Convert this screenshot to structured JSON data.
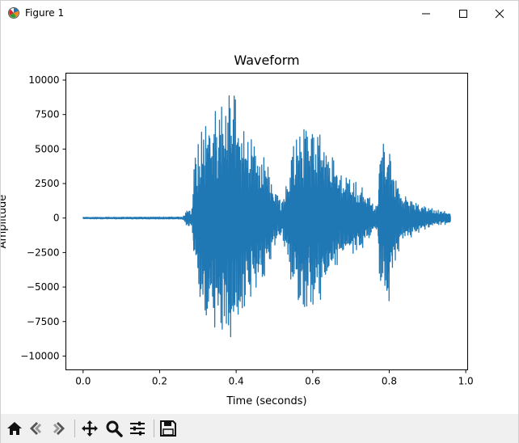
{
  "window": {
    "title": "Figure 1",
    "icons": {
      "app": "matplotlib-figure-icon",
      "minimize": "minimize-icon",
      "maximize": "maximize-icon",
      "close": "close-icon"
    }
  },
  "toolbar": {
    "buttons": [
      {
        "name": "home-icon",
        "label": "Home"
      },
      {
        "name": "back-icon",
        "label": "Back"
      },
      {
        "name": "forward-icon",
        "label": "Forward"
      },
      {
        "name": "pan-icon",
        "label": "Pan"
      },
      {
        "name": "zoom-icon",
        "label": "Zoom"
      },
      {
        "name": "subplots-icon",
        "label": "Configure subplots"
      },
      {
        "name": "save-icon",
        "label": "Save"
      }
    ]
  },
  "colors": {
    "line": "#1f77b4",
    "toolbar_bg": "#f0f0f0"
  },
  "chart_data": {
    "type": "line",
    "title": "Waveform",
    "xlabel": "Time (seconds)",
    "ylabel": "Amplitude",
    "xlim": [
      -0.045,
      1.005
    ],
    "ylim": [
      -11000,
      10500
    ],
    "xticks": [
      0.0,
      0.2,
      0.4,
      0.6,
      0.8,
      1.0
    ],
    "xtick_labels": [
      "0.0",
      "0.2",
      "0.4",
      "0.6",
      "0.8",
      "1.0"
    ],
    "yticks": [
      10000,
      7500,
      5000,
      2500,
      0,
      -2500,
      -5000,
      -7500,
      -10000
    ],
    "ytick_labels": [
      "10000",
      "7500",
      "5000",
      "2500",
      "0",
      "−2500",
      "−5000",
      "−7500",
      "−10000"
    ],
    "grid": false,
    "series": [
      {
        "duration": 0.96,
        "envelope": [
          {
            "t": 0.0,
            "amp": 60
          },
          {
            "t": 0.26,
            "amp": 80
          },
          {
            "t": 0.27,
            "amp": 500
          },
          {
            "t": 0.285,
            "amp": 700
          },
          {
            "t": 0.29,
            "amp": 4000
          },
          {
            "t": 0.31,
            "amp": 6500
          },
          {
            "t": 0.34,
            "amp": 7800
          },
          {
            "t": 0.37,
            "amp": 8500
          },
          {
            "t": 0.385,
            "amp": 9500
          },
          {
            "t": 0.4,
            "amp": 8500
          },
          {
            "t": 0.42,
            "amp": 6500
          },
          {
            "t": 0.45,
            "amp": 5500
          },
          {
            "t": 0.48,
            "amp": 4000
          },
          {
            "t": 0.5,
            "amp": 2000
          },
          {
            "t": 0.52,
            "amp": 1200
          },
          {
            "t": 0.53,
            "amp": 2500
          },
          {
            "t": 0.55,
            "amp": 5500
          },
          {
            "t": 0.58,
            "amp": 6500
          },
          {
            "t": 0.62,
            "amp": 6000
          },
          {
            "t": 0.65,
            "amp": 4500
          },
          {
            "t": 0.68,
            "amp": 3000
          },
          {
            "t": 0.72,
            "amp": 2500
          },
          {
            "t": 0.75,
            "amp": 1500
          },
          {
            "t": 0.76,
            "amp": 900
          },
          {
            "t": 0.77,
            "amp": 1000
          },
          {
            "t": 0.775,
            "amp": 5500
          },
          {
            "t": 0.8,
            "amp": 6000
          },
          {
            "t": 0.81,
            "amp": 3500
          },
          {
            "t": 0.83,
            "amp": 2000
          },
          {
            "t": 0.85,
            "amp": 1500
          },
          {
            "t": 0.88,
            "amp": 1000
          },
          {
            "t": 0.92,
            "amp": 600
          },
          {
            "t": 0.94,
            "amp": 500
          },
          {
            "t": 0.96,
            "amp": 400
          }
        ]
      }
    ]
  }
}
